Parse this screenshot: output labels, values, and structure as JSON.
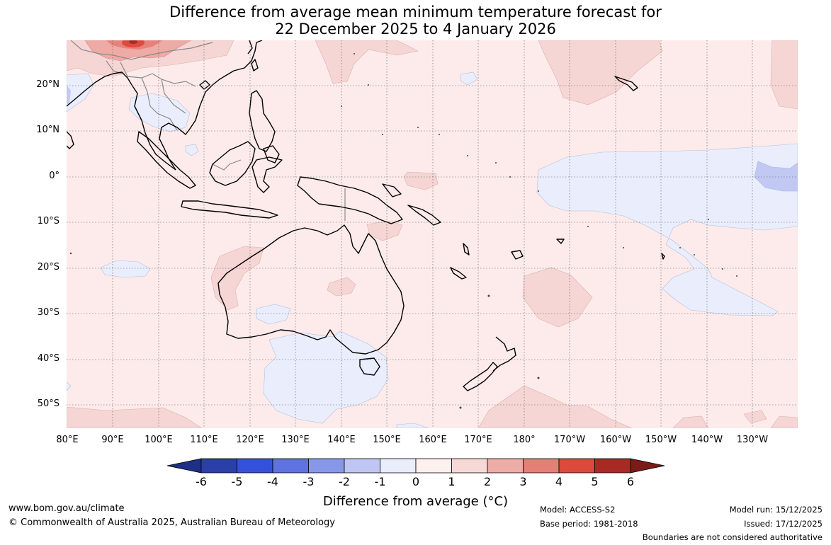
{
  "title": {
    "line1": "Difference from average mean minimum temperature forecast for",
    "line2": "22 December 2025 to 4 January 2026"
  },
  "map": {
    "lat_labels": [
      "20°N",
      "10°N",
      "0°",
      "10°S",
      "20°S",
      "30°S",
      "40°S",
      "50°S"
    ],
    "lon_labels": [
      "80°E",
      "90°E",
      "100°E",
      "110°E",
      "120°E",
      "130°E",
      "140°E",
      "150°E",
      "160°E",
      "170°E",
      "180°",
      "170°W",
      "160°W",
      "150°W",
      "140°W",
      "130°W"
    ],
    "colors": {
      "neutral_0_1": "#fcebea",
      "warm_1_2": "#f5d6d4",
      "warm_2_3": "#eeaaa5",
      "warm_3_4": "#e6827b",
      "warm_4_5": "#db4b3e",
      "cool_0_m1": "#eaeefc",
      "cool_m1_m2": "#c1c9f3",
      "coastline": "#000000",
      "border": "#8a8a8a",
      "gridline": "#555555"
    }
  },
  "colorbar": {
    "ticks": [
      "-6",
      "-5",
      "-4",
      "-3",
      "-2",
      "-1",
      "0",
      "1",
      "2",
      "3",
      "4",
      "5",
      "6"
    ],
    "colors": [
      "#1d2f86",
      "#2a40a8",
      "#3452d9",
      "#5e73e0",
      "#8898e8",
      "#bfc6f3",
      "#eaedfc",
      "#fdf1f0",
      "#f6d9d7",
      "#edaca6",
      "#e58077",
      "#db4a3b",
      "#a82a25",
      "#7a1b18"
    ],
    "label": "Difference from average (°C)"
  },
  "footer": {
    "website": "www.bom.gov.au/climate",
    "copyright": "© Commonwealth of Australia 2025, Australian Bureau of Meteorology",
    "model": "Model: ACCESS-S2",
    "base_period": "Base period: 1981-2018",
    "model_run": "Model run: 15/12/2025",
    "issued": "Issued: 17/12/2025",
    "disclaimer": "Boundaries are not considered authoritative"
  }
}
